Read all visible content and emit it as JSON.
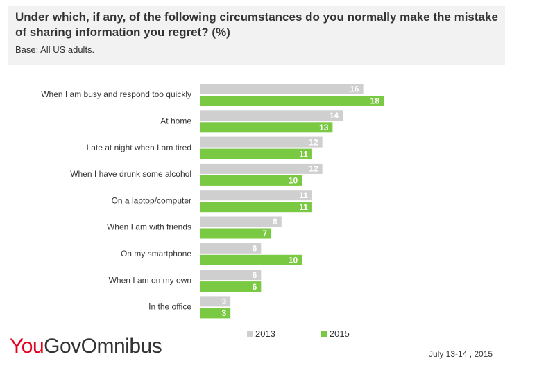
{
  "header": {
    "title": "Under which, if any, of the following circumstances do you normally make the mistake of sharing information you regret? (%)",
    "base": "Base: All US adults."
  },
  "colors": {
    "s2013": "#cfcfcf",
    "s2015": "#7ac943"
  },
  "chart_data": {
    "type": "bar",
    "orientation": "horizontal",
    "title": "Under which, if any, of the following circumstances do you normally make the mistake of sharing information you regret? (%)",
    "subtitle": "Base: All US adults.",
    "categories": [
      "When I am busy and respond too quickly",
      "At home",
      "Late at night when I am tired",
      "When I have drunk some alcohol",
      "On a laptop/computer",
      "When I am with friends",
      "On my smartphone",
      "When I am on my own",
      "In the office"
    ],
    "series": [
      {
        "name": "2013",
        "values": [
          16,
          14,
          12,
          12,
          11,
          8,
          6,
          6,
          3
        ]
      },
      {
        "name": "2015",
        "values": [
          18,
          13,
          11,
          10,
          11,
          7,
          10,
          6,
          3
        ]
      }
    ],
    "xlim": [
      0,
      18
    ],
    "legend_position": "bottom"
  },
  "legend": {
    "s2013": "2013",
    "s2015": "2015"
  },
  "footer": {
    "logo_you": "You",
    "logo_gov": "Gov",
    "logo_omnibus": "Omnibus",
    "date": "July 13-14 , 2015"
  }
}
